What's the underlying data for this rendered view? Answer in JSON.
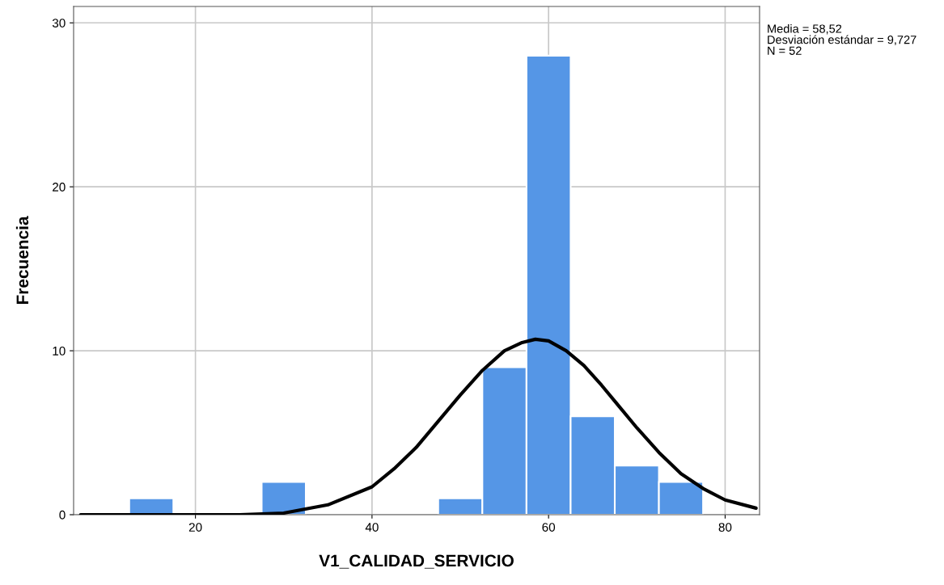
{
  "chart_data": {
    "type": "histogram",
    "xlabel": "V1_CALIDAD_SERVICIO",
    "ylabel": "Frecuencia",
    "bins": [
      12.5,
      17.5,
      22.5,
      27.5,
      32.5,
      37.5,
      42.5,
      47.5,
      52.5,
      57.5,
      62.5,
      67.5,
      72.5,
      77.5
    ],
    "values": [
      1,
      0,
      0,
      2,
      0,
      0,
      0,
      1,
      9,
      28,
      6,
      3,
      2
    ],
    "color": "#5596e6",
    "series": [
      {
        "type": "line",
        "color": "#000000",
        "x": [
          7,
          10,
          20,
          25,
          30,
          35,
          40,
          42.5,
          45,
          47.5,
          50,
          52.5,
          55,
          57,
          58.5,
          60,
          62,
          64,
          66,
          68,
          70,
          72.5,
          75,
          77.5,
          80,
          83.5
        ],
        "values": [
          0,
          0,
          0,
          0,
          0.1,
          0.6,
          1.7,
          2.8,
          4.1,
          5.7,
          7.3,
          8.8,
          10.0,
          10.5,
          10.7,
          10.6,
          10.0,
          9.1,
          7.9,
          6.6,
          5.3,
          3.8,
          2.5,
          1.6,
          0.9,
          0.4
        ]
      }
    ],
    "xlim": [
      6.2,
      83.9
    ],
    "ylim": [
      0,
      31
    ],
    "xticks": [
      20,
      40,
      60,
      80
    ],
    "yticks": [
      0,
      10,
      20,
      30
    ],
    "grid": true,
    "annotations": [
      "Media = 58,52\nDesviación estándar = 9,727\nN = 52"
    ]
  }
}
